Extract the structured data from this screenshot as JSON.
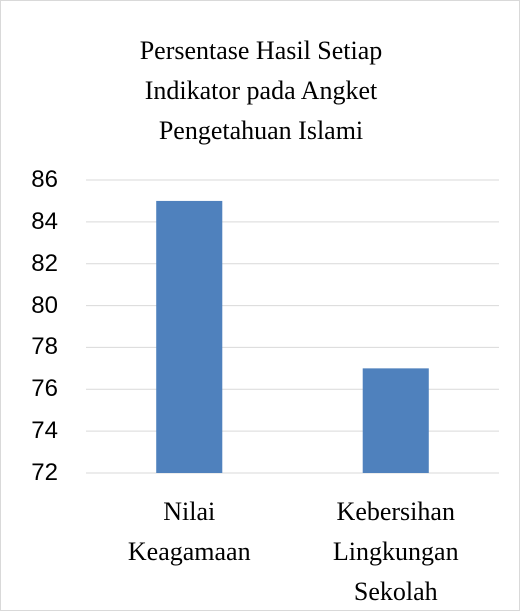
{
  "chart_data": {
    "type": "bar",
    "title": "Persentase Hasil Setiap Indikator pada Angket Pengetahuan Islami",
    "categories": [
      "Nilai Keagamaan",
      "Kebersihan Lingkungan Sekolah"
    ],
    "values": [
      85,
      77
    ],
    "color": "#4f81bd",
    "ylim": [
      72,
      86
    ],
    "yticks": [
      72,
      74,
      76,
      78,
      80,
      82,
      84,
      86
    ],
    "grid": true
  }
}
